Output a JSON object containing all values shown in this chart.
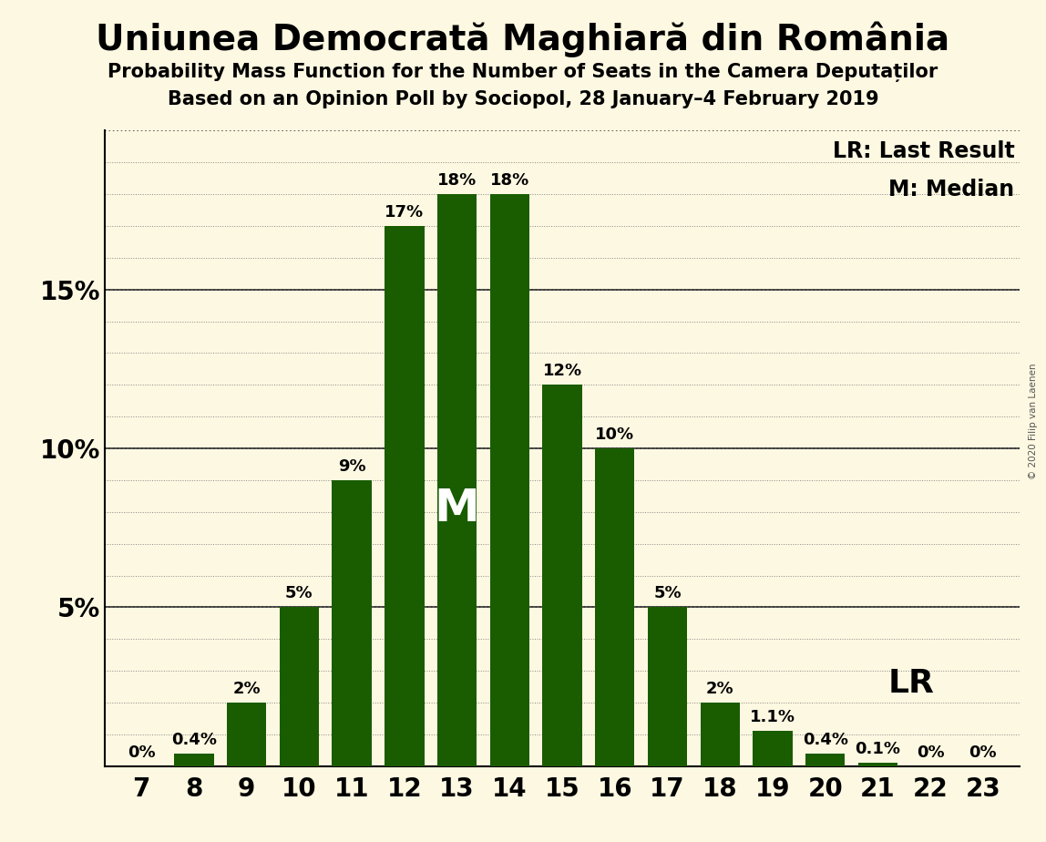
{
  "title": "Uniunea Democrată Maghiară din România",
  "subtitle1": "Probability Mass Function for the Number of Seats in the Camera Deputaților",
  "subtitle2": "Based on an Opinion Poll by Sociopol, 28 January–4 February 2019",
  "copyright": "© 2020 Filip van Laenen",
  "categories": [
    7,
    8,
    9,
    10,
    11,
    12,
    13,
    14,
    15,
    16,
    17,
    18,
    19,
    20,
    21,
    22,
    23
  ],
  "values": [
    0.0,
    0.4,
    2.0,
    5.0,
    9.0,
    17.0,
    18.0,
    18.0,
    12.0,
    10.0,
    5.0,
    2.0,
    1.1,
    0.4,
    0.1,
    0.0,
    0.0
  ],
  "labels": [
    "0%",
    "0.4%",
    "2%",
    "5%",
    "9%",
    "17%",
    "18%",
    "18%",
    "12%",
    "10%",
    "5%",
    "2%",
    "1.1%",
    "0.4%",
    "0.1%",
    "0%",
    "0%"
  ],
  "bar_color": "#1a5c00",
  "background_color": "#fdf8e1",
  "text_color": "#000000",
  "median_bar": 13,
  "median_label": "M",
  "lr_bar": 20,
  "lr_label": "LR",
  "legend_lr": "LR: Last Result",
  "legend_m": "M: Median",
  "ylim": [
    0,
    20
  ],
  "title_fontsize": 28,
  "subtitle_fontsize": 15,
  "axis_fontsize": 20,
  "bar_label_fontsize": 13,
  "legend_fontsize": 17,
  "median_label_fontsize": 36,
  "lr_label_fontsize": 26
}
